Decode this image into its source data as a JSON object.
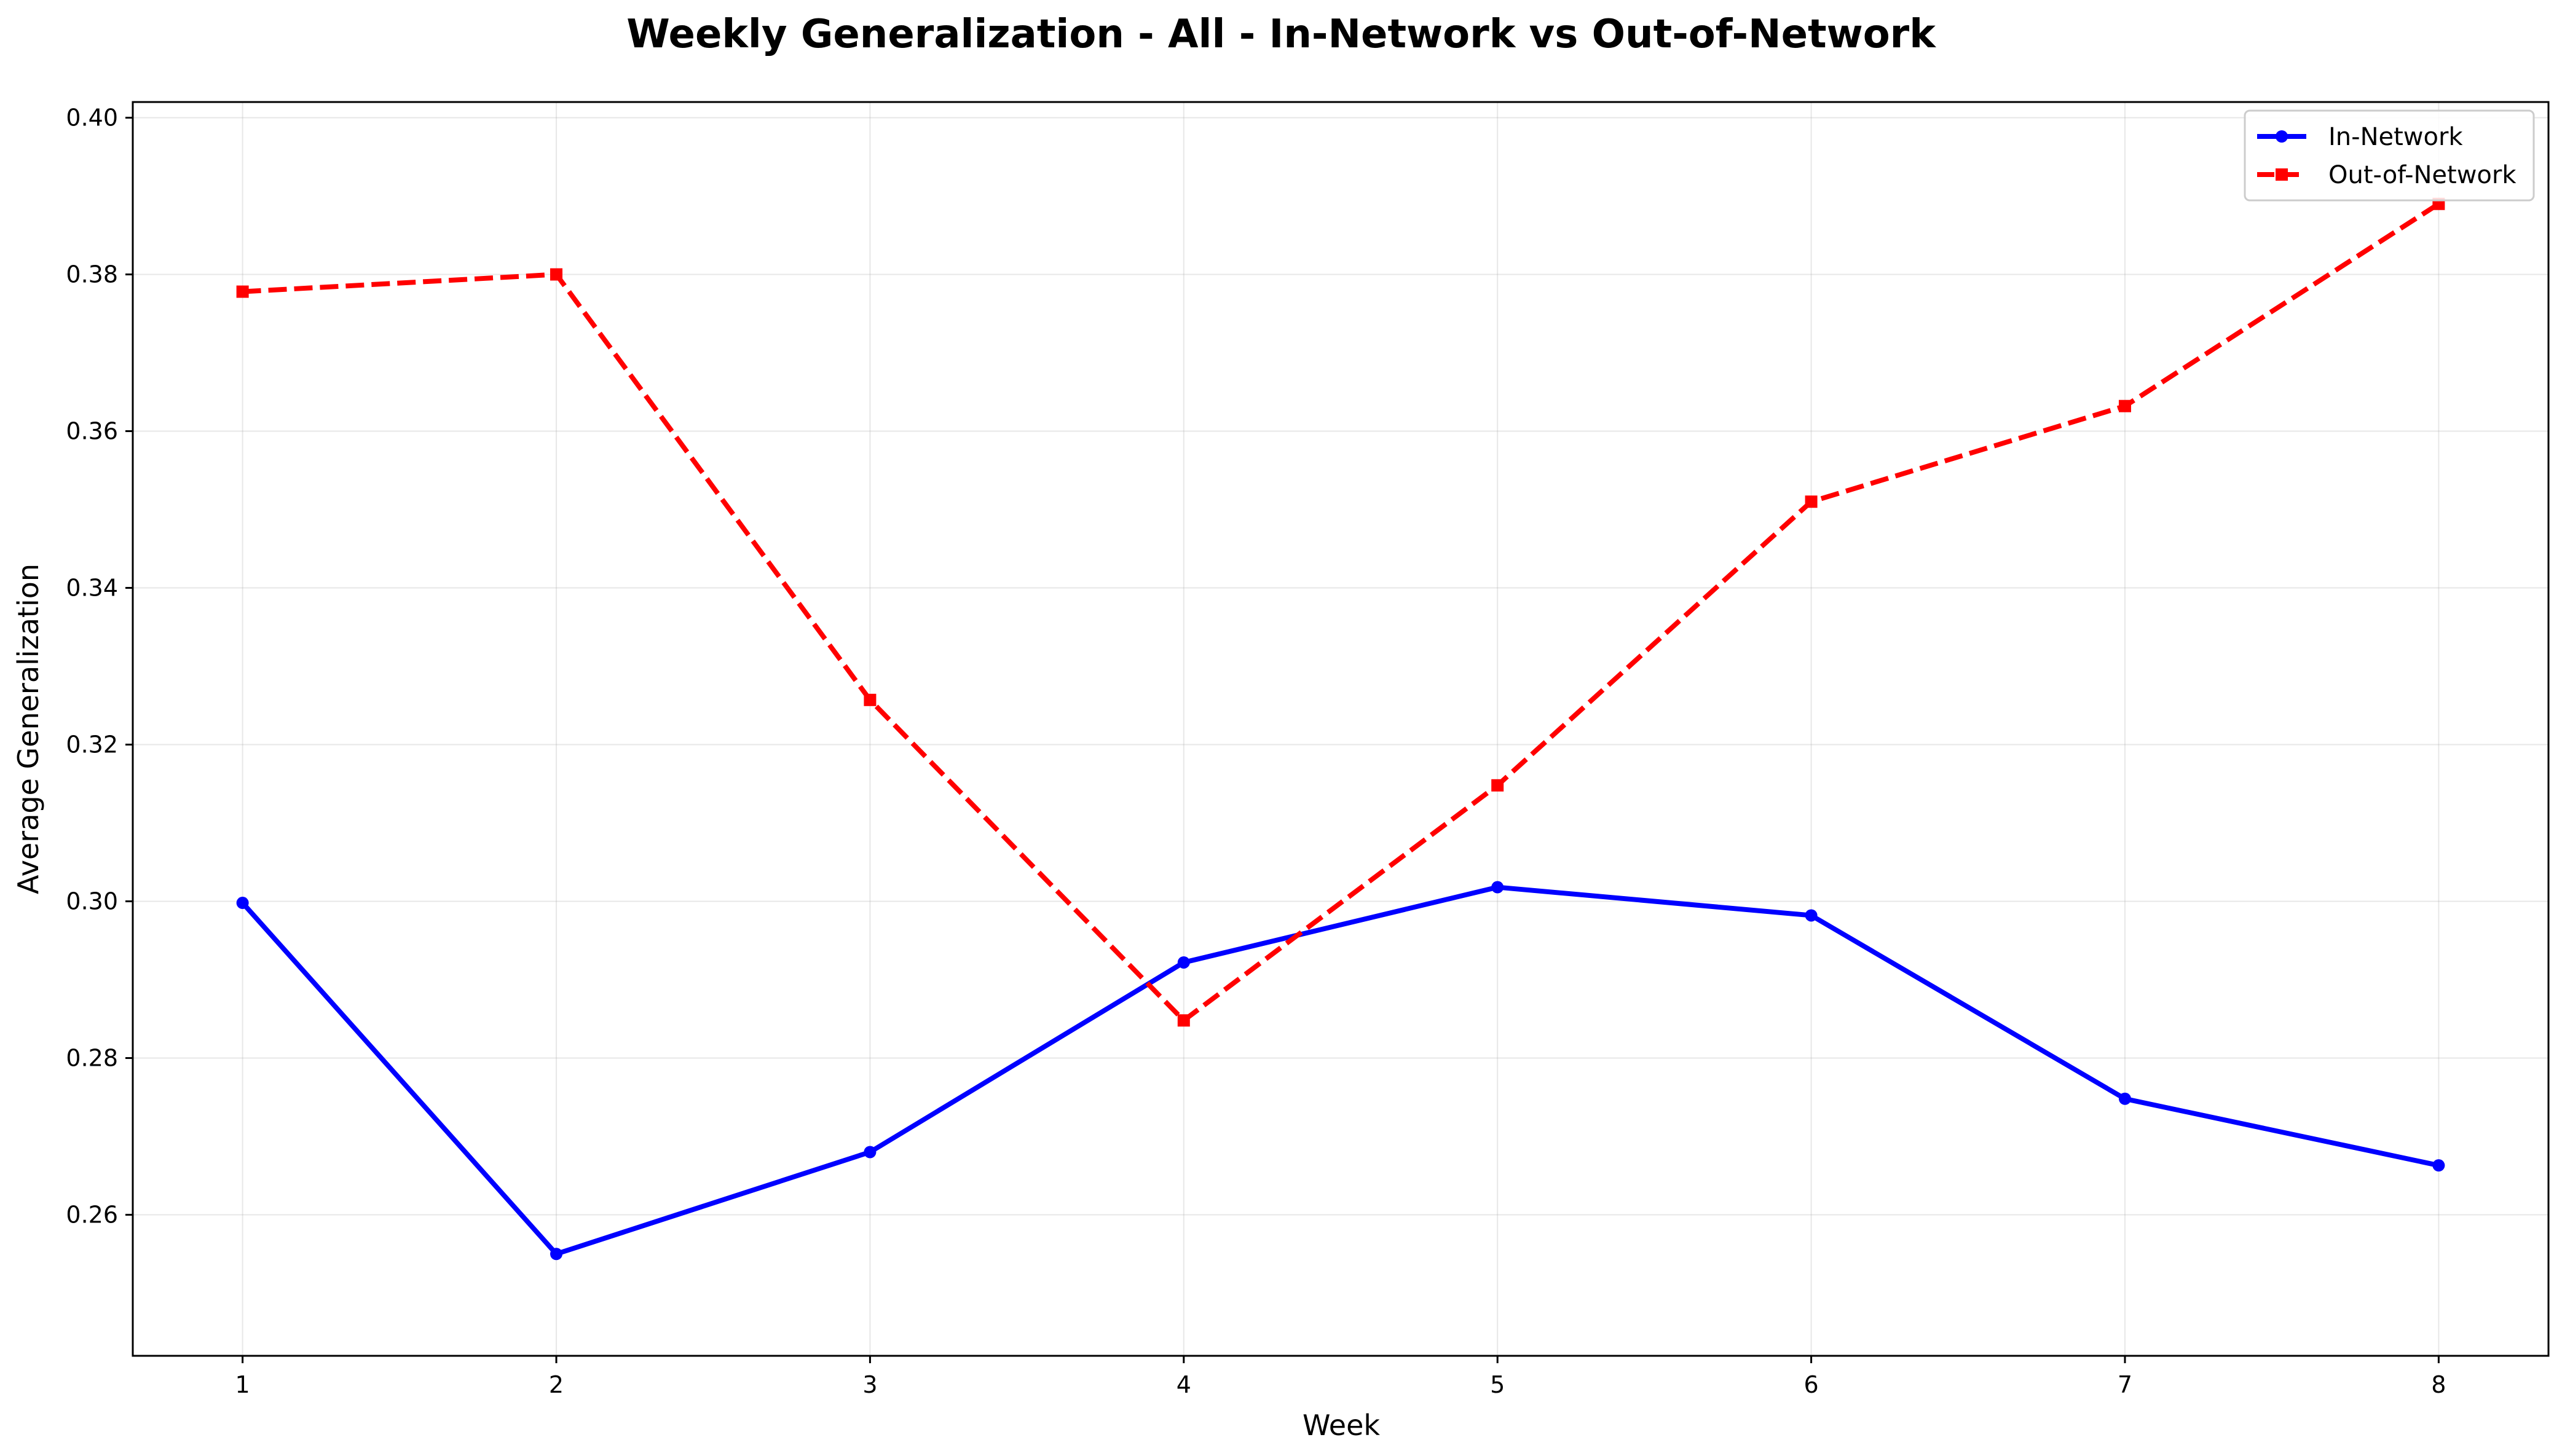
{
  "chart_data": {
    "type": "line",
    "title": "Weekly Generalization - All - In-Network vs Out-of-Network",
    "xlabel": "Week",
    "ylabel": "Average Generalization",
    "x": [
      1,
      2,
      3,
      4,
      5,
      6,
      7,
      8
    ],
    "xlim": [
      0.65,
      8.35
    ],
    "ylim": [
      0.242,
      0.402
    ],
    "xticks": [
      "1",
      "2",
      "3",
      "4",
      "5",
      "6",
      "7",
      "8"
    ],
    "yticks": [
      "0.26",
      "0.28",
      "0.30",
      "0.32",
      "0.34",
      "0.36",
      "0.38",
      "0.40"
    ],
    "ytick_values": [
      0.26,
      0.28,
      0.3,
      0.32,
      0.34,
      0.36,
      0.38,
      0.4
    ],
    "grid": true,
    "legend_position": "top-right",
    "series": [
      {
        "name": "In-Network",
        "color": "#0000ff",
        "line_style": "solid",
        "marker": "circle",
        "values": [
          0.2998,
          0.255,
          0.268,
          0.2922,
          0.3018,
          0.2982,
          0.2748,
          0.2663
        ]
      },
      {
        "name": "Out-of-Network",
        "color": "#ff0000",
        "line_style": "dashed",
        "marker": "square",
        "values": [
          0.3778,
          0.38,
          0.3257,
          0.2848,
          0.3148,
          0.351,
          0.3632,
          0.389
        ]
      }
    ]
  }
}
